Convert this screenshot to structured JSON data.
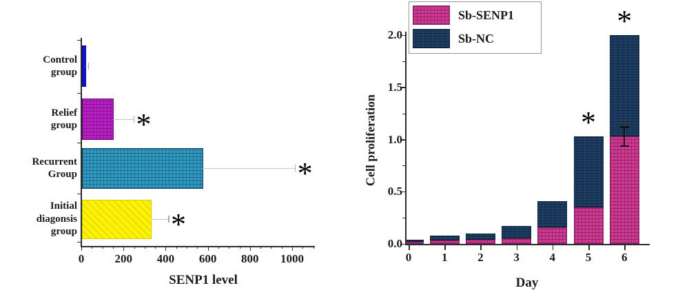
{
  "figure": {
    "significance_marker": "*"
  },
  "chart_data": [
    {
      "id": "senp1-level-chart",
      "type": "bar",
      "orientation": "horizontal",
      "title": "",
      "xlabel": "SENP1 level",
      "categories": [
        "Control group",
        "Relief group",
        "Recurrent Group",
        "Initial diagonsis group"
      ],
      "category_lines": [
        [
          "Control",
          "group"
        ],
        [
          "Relief",
          "group"
        ],
        [
          "Recurrent",
          "Group"
        ],
        [
          "Initial",
          "diagonsis",
          "group"
        ]
      ],
      "values": [
        20,
        150,
        575,
        330
      ],
      "error_upper": [
        15,
        100,
        440,
        85
      ],
      "significant": [
        false,
        true,
        true,
        true
      ],
      "xlim": [
        0,
        1110
      ],
      "xticks": [
        0,
        200,
        400,
        600,
        800,
        1000
      ],
      "minor_tick_step": 50,
      "grid": false,
      "bar_colors": [
        "#1313cf",
        "#bb1fc4",
        "#2e9abf",
        "#fdf200"
      ],
      "bar_border_colors": [
        "#0a0a96",
        "#720084",
        "#10405f",
        "#d9cf00"
      ],
      "hatches": [
        "solid",
        "grid",
        "grid",
        "diagonal"
      ]
    },
    {
      "id": "cell-proliferation-chart",
      "type": "stacked-bar",
      "title": "",
      "xlabel": "Day",
      "ylabel": "Cell proliferation",
      "categories": [
        "0",
        "1",
        "2",
        "3",
        "4",
        "5",
        "6"
      ],
      "series": [
        {
          "name": "Sb-SENP1",
          "color": "#d1388f",
          "border": "#8f1f63",
          "values": [
            0.02,
            0.03,
            0.04,
            0.05,
            0.16,
            0.35,
            1.03
          ]
        },
        {
          "name": "Sb-NC",
          "color": "#1b3a5e",
          "border": "#0d2238",
          "values": [
            0.02,
            0.05,
            0.06,
            0.12,
            0.25,
            0.68,
            0.97
          ]
        }
      ],
      "totals": [
        0.04,
        0.08,
        0.1,
        0.17,
        0.41,
        1.03,
        2.0
      ],
      "ylim": [
        0,
        2.2
      ],
      "yticks": [
        "0.0",
        "0.5",
        "1.0",
        "1.5",
        "2.0"
      ],
      "minor_tick_step": 0.25,
      "grid": false,
      "significant_categories": [
        "5",
        "6"
      ],
      "error_bar": {
        "category": "6",
        "center": 1.03,
        "plus_minus": 0.09
      },
      "legend": {
        "position": "top-left",
        "items": [
          "Sb-SENP1",
          "Sb-NC"
        ]
      }
    }
  ]
}
